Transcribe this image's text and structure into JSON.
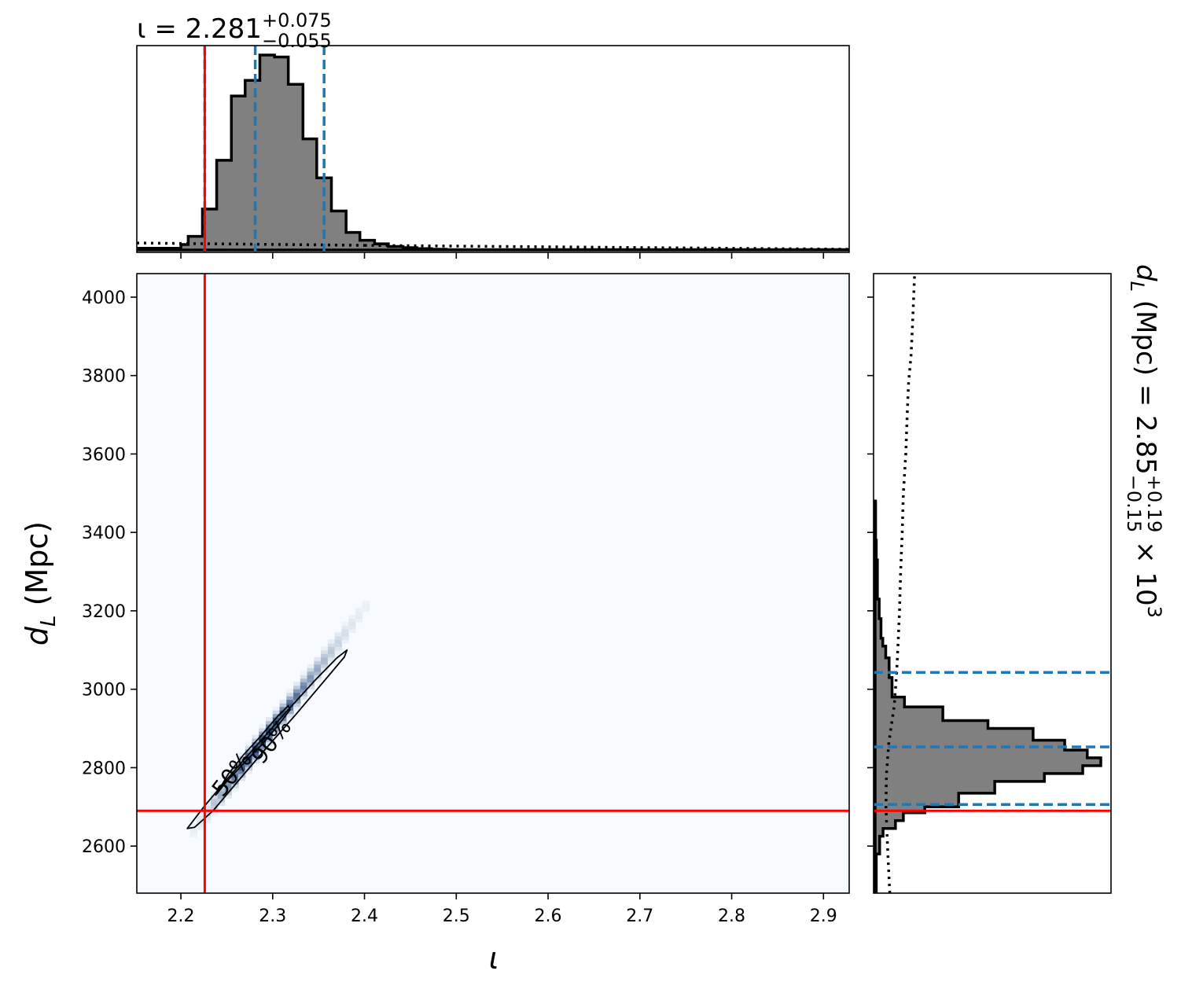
{
  "chart_data": {
    "type": "corner",
    "parameters": [
      {
        "symbol": "ι",
        "title_main": "ι = 2.281",
        "title_plus": "+0.075",
        "title_minus": "−0.055",
        "median": 2.281,
        "lower": 2.226,
        "upper": 2.356,
        "injected": 2.226,
        "xlim": [
          2.152,
          2.928
        ],
        "ticks": [
          "2.2",
          "2.3",
          "2.4",
          "2.5",
          "2.6",
          "2.7",
          "2.8",
          "2.9"
        ],
        "tick_values": [
          2.2,
          2.3,
          2.4,
          2.5,
          2.6,
          2.7,
          2.8,
          2.9
        ],
        "hist_edges": [
          2.152,
          2.2,
          2.208,
          2.2235,
          2.239,
          2.255,
          2.27,
          2.286,
          2.302,
          2.317,
          2.333,
          2.348,
          2.364,
          2.38,
          2.395,
          2.411,
          2.426,
          2.442,
          2.457,
          2.473,
          2.489,
          2.928
        ],
        "hist_counts": [
          0.9,
          2.8,
          7.0,
          21.0,
          46.0,
          79.0,
          87.0,
          100.0,
          99.0,
          85.0,
          57.0,
          37.0,
          20.0,
          9.0,
          5.0,
          3.2,
          1.8,
          1.2,
          0.7,
          0.4,
          0.2
        ],
        "prior_level": 3.6
      },
      {
        "symbol": "d_L",
        "label": "d",
        "label_sub": "L",
        "label_unit": " (Mpc)",
        "title_main": "d",
        "title_sub": "L",
        "title_rest": " (Mpc) = 2.85",
        "title_plus": "+0.19",
        "title_minus": "−0.15",
        "title_exp_base": " × 10",
        "title_exp": "3",
        "median": 2853,
        "lower": 2706,
        "upper": 3043,
        "injected": 2690,
        "ylim": [
          2480,
          4060
        ],
        "ticks": [
          "2600",
          "2800",
          "3000",
          "3200",
          "3400",
          "3600",
          "3800",
          "4000"
        ],
        "tick_values": [
          2600,
          2800,
          3000,
          3200,
          3400,
          3600,
          3800,
          4000
        ],
        "hist_edges": [
          2480,
          2580,
          2625,
          2645,
          2665,
          2685,
          2700,
          2735,
          2765,
          2785,
          2805,
          2825,
          2845,
          2870,
          2900,
          2920,
          2955,
          2980,
          3030,
          3080,
          3110,
          3130,
          3180,
          3230,
          3330,
          3380,
          3480
        ],
        "hist_counts": [
          0.5,
          2,
          3.5,
          9,
          12.5,
          22,
          37,
          53,
          75,
          92,
          100,
          94,
          84,
          70,
          50,
          30,
          13,
          7.5,
          6.2,
          4.7,
          3.4,
          2.6,
          1.8,
          1.0,
          0.5,
          0.2
        ],
        "prior_curve": [
          [
            2480,
            6.5
          ],
          [
            2560,
            5.8
          ],
          [
            2640,
            5.2
          ],
          [
            2700,
            4.8
          ],
          [
            2780,
            5.0
          ],
          [
            2860,
            6.0
          ],
          [
            2960,
            8.5
          ],
          [
            3040,
            9.5
          ],
          [
            3120,
            10.2
          ],
          [
            3200,
            10.8
          ],
          [
            3300,
            11.3
          ],
          [
            3400,
            12.0
          ],
          [
            3500,
            12.5
          ],
          [
            3600,
            13.6
          ],
          [
            3700,
            14.2
          ],
          [
            3780,
            14.8
          ],
          [
            3850,
            15.9
          ],
          [
            3920,
            16.5
          ],
          [
            3990,
            17.0
          ],
          [
            4060,
            17.5
          ]
        ]
      }
    ],
    "density_2d": {
      "line_slope": 3040,
      "intercept_x": 2.281,
      "intercept_y": 2853,
      "sigma_along_x": 0.026,
      "sigma_perp_y": 13,
      "contours": [
        {
          "label": "50%",
          "x": [
            2.238,
            2.252,
            2.268,
            2.286,
            2.305,
            2.317,
            2.319,
            2.306,
            2.288,
            2.268,
            2.25,
            2.238
          ],
          "y": [
            2730,
            2785,
            2832,
            2878,
            2930,
            2958,
            2948,
            2908,
            2858,
            2810,
            2765,
            2730
          ]
        },
        {
          "label": "90%",
          "x": [
            2.207,
            2.225,
            2.25,
            2.28,
            2.312,
            2.345,
            2.37,
            2.381,
            2.378,
            2.355,
            2.325,
            2.293,
            2.262,
            2.235,
            2.215,
            2.207
          ],
          "y": [
            2645,
            2700,
            2770,
            2850,
            2935,
            3020,
            3080,
            3100,
            3082,
            3018,
            2935,
            2850,
            2765,
            2690,
            2648,
            2645
          ]
        }
      ]
    },
    "colors": {
      "hist_fill": "#808080",
      "hist_edge": "#000000",
      "quantile_line": "#1f77b4",
      "truth_line": "#ff0000",
      "cmap_low": "#f7fbff",
      "cmap_high": "#08306b"
    }
  }
}
